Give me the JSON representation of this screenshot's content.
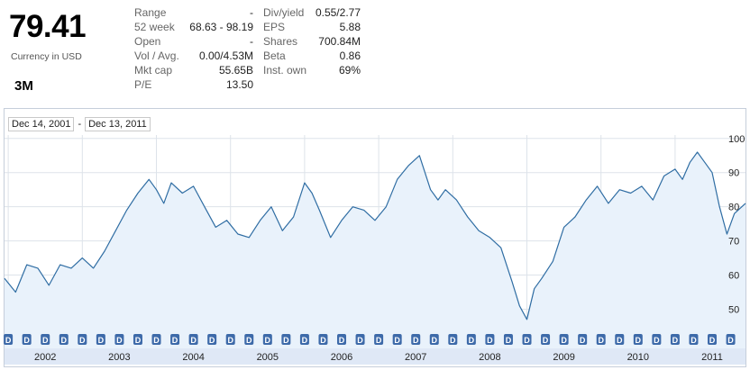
{
  "quote": {
    "price": "79.41",
    "currency": "Currency in USD",
    "company": "3M"
  },
  "stats_left": [
    {
      "label": "Range",
      "value": "-"
    },
    {
      "label": "52 week",
      "value": "68.63 - 98.19"
    },
    {
      "label": "Open",
      "value": "-"
    },
    {
      "label": "Vol / Avg.",
      "value": "0.00/4.53M"
    },
    {
      "label": "Mkt cap",
      "value": "55.65B"
    },
    {
      "label": "P/E",
      "value": "13.50"
    }
  ],
  "stats_right": [
    {
      "label": "Div/yield",
      "value": "0.55/2.77"
    },
    {
      "label": "EPS",
      "value": "5.88"
    },
    {
      "label": "Shares",
      "value": "700.84M"
    },
    {
      "label": "Beta",
      "value": "0.86"
    },
    {
      "label": "Inst. own",
      "value": "69%"
    }
  ],
  "date_range": {
    "start": "Dec 14, 2001",
    "separator": "-",
    "end": "Dec 13, 2011"
  },
  "dividend_marker_label": "D",
  "colors": {
    "line": "#2f6da3",
    "fill": "#e9f2fb",
    "grid": "#dde3ea",
    "year_bar": "#dfe8f6",
    "dividend_marker": "#3d6aa9"
  },
  "chart_data": {
    "type": "area",
    "ylim": [
      43,
      101
    ],
    "y_ticks": [
      50,
      60,
      70,
      80,
      90,
      100
    ],
    "x_ticks": [
      "2002",
      "2003",
      "2004",
      "2005",
      "2006",
      "2007",
      "2008",
      "2009",
      "2010",
      "2011"
    ],
    "grid": true,
    "series": [
      {
        "x": [
          2001.95,
          2002.1,
          2002.25,
          2002.4,
          2002.55,
          2002.7,
          2002.85,
          2003.0,
          2003.15,
          2003.3,
          2003.45,
          2003.6,
          2003.75,
          2003.9,
          2004.0,
          2004.1,
          2004.2,
          2004.35,
          2004.5,
          2004.65,
          2004.8,
          2004.95,
          2005.1,
          2005.25,
          2005.4,
          2005.55,
          2005.7,
          2005.85,
          2006.0,
          2006.1,
          2006.2,
          2006.35,
          2006.5,
          2006.65,
          2006.8,
          2006.95,
          2007.1,
          2007.25,
          2007.4,
          2007.55,
          2007.7,
          2007.8,
          2007.9,
          2008.05,
          2008.2,
          2008.35,
          2008.5,
          2008.65,
          2008.8,
          2008.9,
          2009.0,
          2009.1,
          2009.2,
          2009.35,
          2009.5,
          2009.65,
          2009.8,
          2009.95,
          2010.1,
          2010.25,
          2010.4,
          2010.55,
          2010.7,
          2010.85,
          2011.0,
          2011.1,
          2011.2,
          2011.3,
          2011.4,
          2011.5,
          2011.6,
          2011.7,
          2011.8,
          2011.95
        ],
        "values": [
          59,
          55,
          63,
          62,
          57,
          63,
          62,
          65,
          62,
          67,
          73,
          79,
          84,
          88,
          85,
          81,
          87,
          84,
          86,
          80,
          74,
          76,
          72,
          71,
          76,
          80,
          73,
          77,
          87,
          84,
          79,
          71,
          76,
          80,
          79,
          76,
          80,
          88,
          92,
          95,
          85,
          82,
          85,
          82,
          77,
          73,
          71,
          68,
          58,
          51,
          47,
          56,
          59,
          64,
          74,
          77,
          82,
          86,
          81,
          85,
          84,
          86,
          82,
          89,
          91,
          88,
          93,
          96,
          93,
          90,
          80,
          72,
          78,
          81
        ]
      }
    ]
  }
}
